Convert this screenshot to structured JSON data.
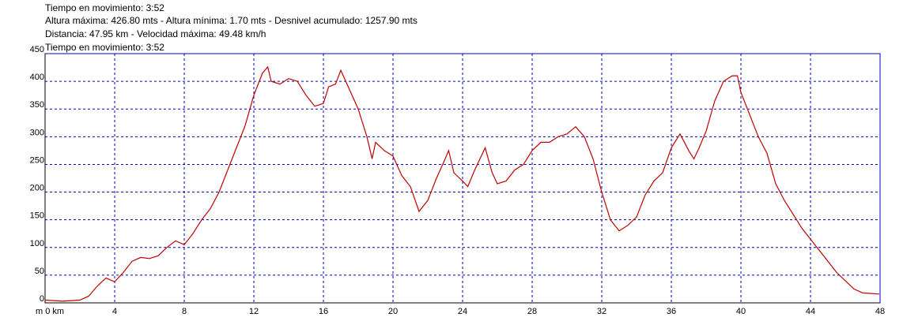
{
  "chart_data": {
    "type": "line",
    "annotations": [
      "Tiempo en movimiento: 3:52",
      "Altura máxima: 426.80 mts - Altura mínima: 1.70 mts - Desnivel acumulado: 1257.90 mts",
      "Distancia: 47.95 km - Velocidad máxima: 49.48 km/h",
      "Tiempo en movimiento: 3:52"
    ],
    "x": [
      0,
      1,
      2,
      2.5,
      3,
      3.5,
      4,
      4.5,
      5,
      5.5,
      6,
      6.5,
      7,
      7.5,
      8,
      8.5,
      9,
      9.5,
      10,
      10.5,
      11,
      11.5,
      12,
      12.5,
      12.8,
      13,
      13.5,
      14,
      14.5,
      15,
      15.5,
      16,
      16.3,
      16.7,
      17,
      17.5,
      18,
      18.5,
      18.8,
      19,
      19.5,
      20,
      20.5,
      21,
      21.5,
      22,
      22.5,
      23,
      23.2,
      23.5,
      24,
      24.3,
      24.7,
      25,
      25.3,
      25.7,
      26,
      26.5,
      27,
      27.5,
      28,
      28.5,
      29,
      29.5,
      30,
      30.5,
      31,
      31.5,
      32,
      32.5,
      33,
      33.5,
      34,
      34.5,
      35,
      35.5,
      36,
      36.5,
      37,
      37.3,
      37.6,
      38,
      38.5,
      39,
      39.5,
      39.8,
      40,
      40.5,
      41,
      41.5,
      42,
      42.5,
      43,
      43.5,
      44,
      44.5,
      45,
      45.5,
      46,
      46.5,
      47,
      47.95
    ],
    "values": [
      5,
      3,
      5,
      12,
      30,
      45,
      38,
      55,
      75,
      82,
      80,
      85,
      100,
      112,
      105,
      125,
      150,
      170,
      200,
      240,
      280,
      320,
      375,
      415,
      426,
      400,
      395,
      405,
      400,
      375,
      355,
      360,
      390,
      395,
      420,
      385,
      350,
      300,
      260,
      290,
      275,
      265,
      230,
      210,
      165,
      185,
      225,
      260,
      275,
      235,
      220,
      210,
      240,
      260,
      280,
      235,
      215,
      220,
      240,
      250,
      275,
      290,
      290,
      300,
      305,
      318,
      300,
      260,
      200,
      150,
      130,
      140,
      155,
      195,
      220,
      235,
      280,
      305,
      275,
      260,
      280,
      310,
      365,
      400,
      410,
      410,
      380,
      340,
      300,
      270,
      215,
      185,
      160,
      135,
      115,
      95,
      75,
      55,
      40,
      25,
      18,
      16
    ],
    "color": "#c00000",
    "xlim": [
      0,
      48
    ],
    "xticks": [
      {
        "value": 0,
        "label": "m 0 km"
      },
      4,
      8,
      12,
      16,
      20,
      24,
      28,
      32,
      36,
      40,
      44,
      48
    ],
    "ylim": [
      0,
      450
    ],
    "yticks": [
      0,
      50,
      100,
      150,
      200,
      250,
      300,
      350,
      400,
      450
    ],
    "grid": true
  }
}
